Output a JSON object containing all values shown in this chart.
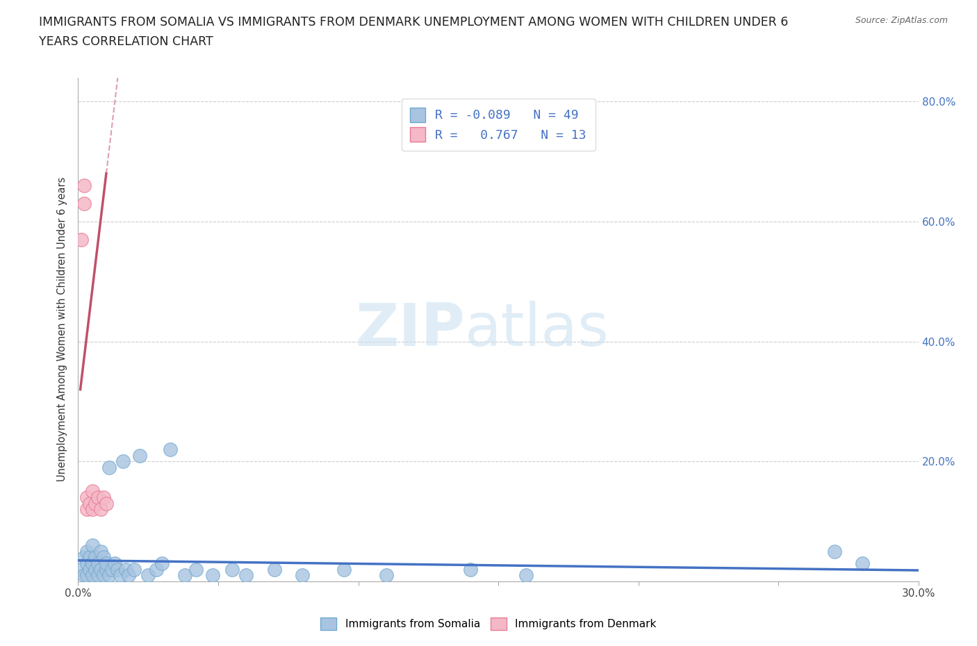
{
  "title_line1": "IMMIGRANTS FROM SOMALIA VS IMMIGRANTS FROM DENMARK UNEMPLOYMENT AMONG WOMEN WITH CHILDREN UNDER 6",
  "title_line2": "YEARS CORRELATION CHART",
  "source_text": "Source: ZipAtlas.com",
  "ylabel": "Unemployment Among Women with Children Under 6 years",
  "xlim": [
    0.0,
    0.3
  ],
  "ylim": [
    0.0,
    0.84
  ],
  "xticks": [
    0.0,
    0.05,
    0.1,
    0.15,
    0.2,
    0.25,
    0.3
  ],
  "xticklabels": [
    "0.0%",
    "",
    "",
    "",
    "",
    "",
    "30.0%"
  ],
  "yticks": [
    0.0,
    0.2,
    0.4,
    0.6,
    0.8
  ],
  "yticklabels_right": [
    "",
    "20.0%",
    "40.0%",
    "60.0%",
    "80.0%"
  ],
  "somalia_color": "#a8c4e0",
  "denmark_color": "#f4b8c6",
  "somalia_edge": "#6fa8d0",
  "denmark_edge": "#e87a96",
  "trend_somalia_color": "#4472c4",
  "trend_denmark_color": "#c0506a",
  "legend_somalia_label": "Immigrants from Somalia",
  "legend_denmark_label": "Immigrants from Denmark",
  "R_somalia": -0.089,
  "N_somalia": 49,
  "R_denmark": 0.767,
  "N_denmark": 13,
  "somalia_x": [
    0.001,
    0.002,
    0.002,
    0.003,
    0.003,
    0.003,
    0.004,
    0.004,
    0.005,
    0.005,
    0.005,
    0.006,
    0.006,
    0.007,
    0.007,
    0.008,
    0.008,
    0.009,
    0.009,
    0.01,
    0.01,
    0.011,
    0.011,
    0.012,
    0.013,
    0.014,
    0.015,
    0.016,
    0.017,
    0.018,
    0.02,
    0.022,
    0.025,
    0.028,
    0.03,
    0.033,
    0.038,
    0.042,
    0.048,
    0.055,
    0.06,
    0.07,
    0.08,
    0.095,
    0.11,
    0.14,
    0.16,
    0.27,
    0.28
  ],
  "somalia_y": [
    0.02,
    0.01,
    0.04,
    0.01,
    0.03,
    0.05,
    0.02,
    0.04,
    0.01,
    0.03,
    0.06,
    0.02,
    0.04,
    0.01,
    0.03,
    0.02,
    0.05,
    0.01,
    0.04,
    0.02,
    0.03,
    0.01,
    0.19,
    0.02,
    0.03,
    0.02,
    0.01,
    0.2,
    0.02,
    0.01,
    0.02,
    0.21,
    0.01,
    0.02,
    0.03,
    0.22,
    0.01,
    0.02,
    0.01,
    0.02,
    0.01,
    0.02,
    0.01,
    0.02,
    0.01,
    0.02,
    0.01,
    0.05,
    0.03
  ],
  "denmark_x": [
    0.001,
    0.002,
    0.002,
    0.003,
    0.003,
    0.004,
    0.005,
    0.005,
    0.006,
    0.007,
    0.008,
    0.009,
    0.01
  ],
  "denmark_y": [
    0.57,
    0.63,
    0.66,
    0.12,
    0.14,
    0.13,
    0.12,
    0.15,
    0.13,
    0.14,
    0.12,
    0.14,
    0.13
  ],
  "den_trend_x0": 0.001,
  "den_trend_y0": 0.33,
  "den_trend_x1": 0.01,
  "den_trend_y1": 0.68,
  "den_trend_slope": 38.9,
  "den_trend_intercept": 0.29,
  "som_trend_x0": 0.0,
  "som_trend_x1": 0.3,
  "som_trend_slope": -0.055,
  "som_trend_intercept": 0.035,
  "watermark_zip": "ZIP",
  "watermark_atlas": "atlas",
  "background_color": "#ffffff",
  "grid_color": "#cccccc",
  "grid_style": "--"
}
